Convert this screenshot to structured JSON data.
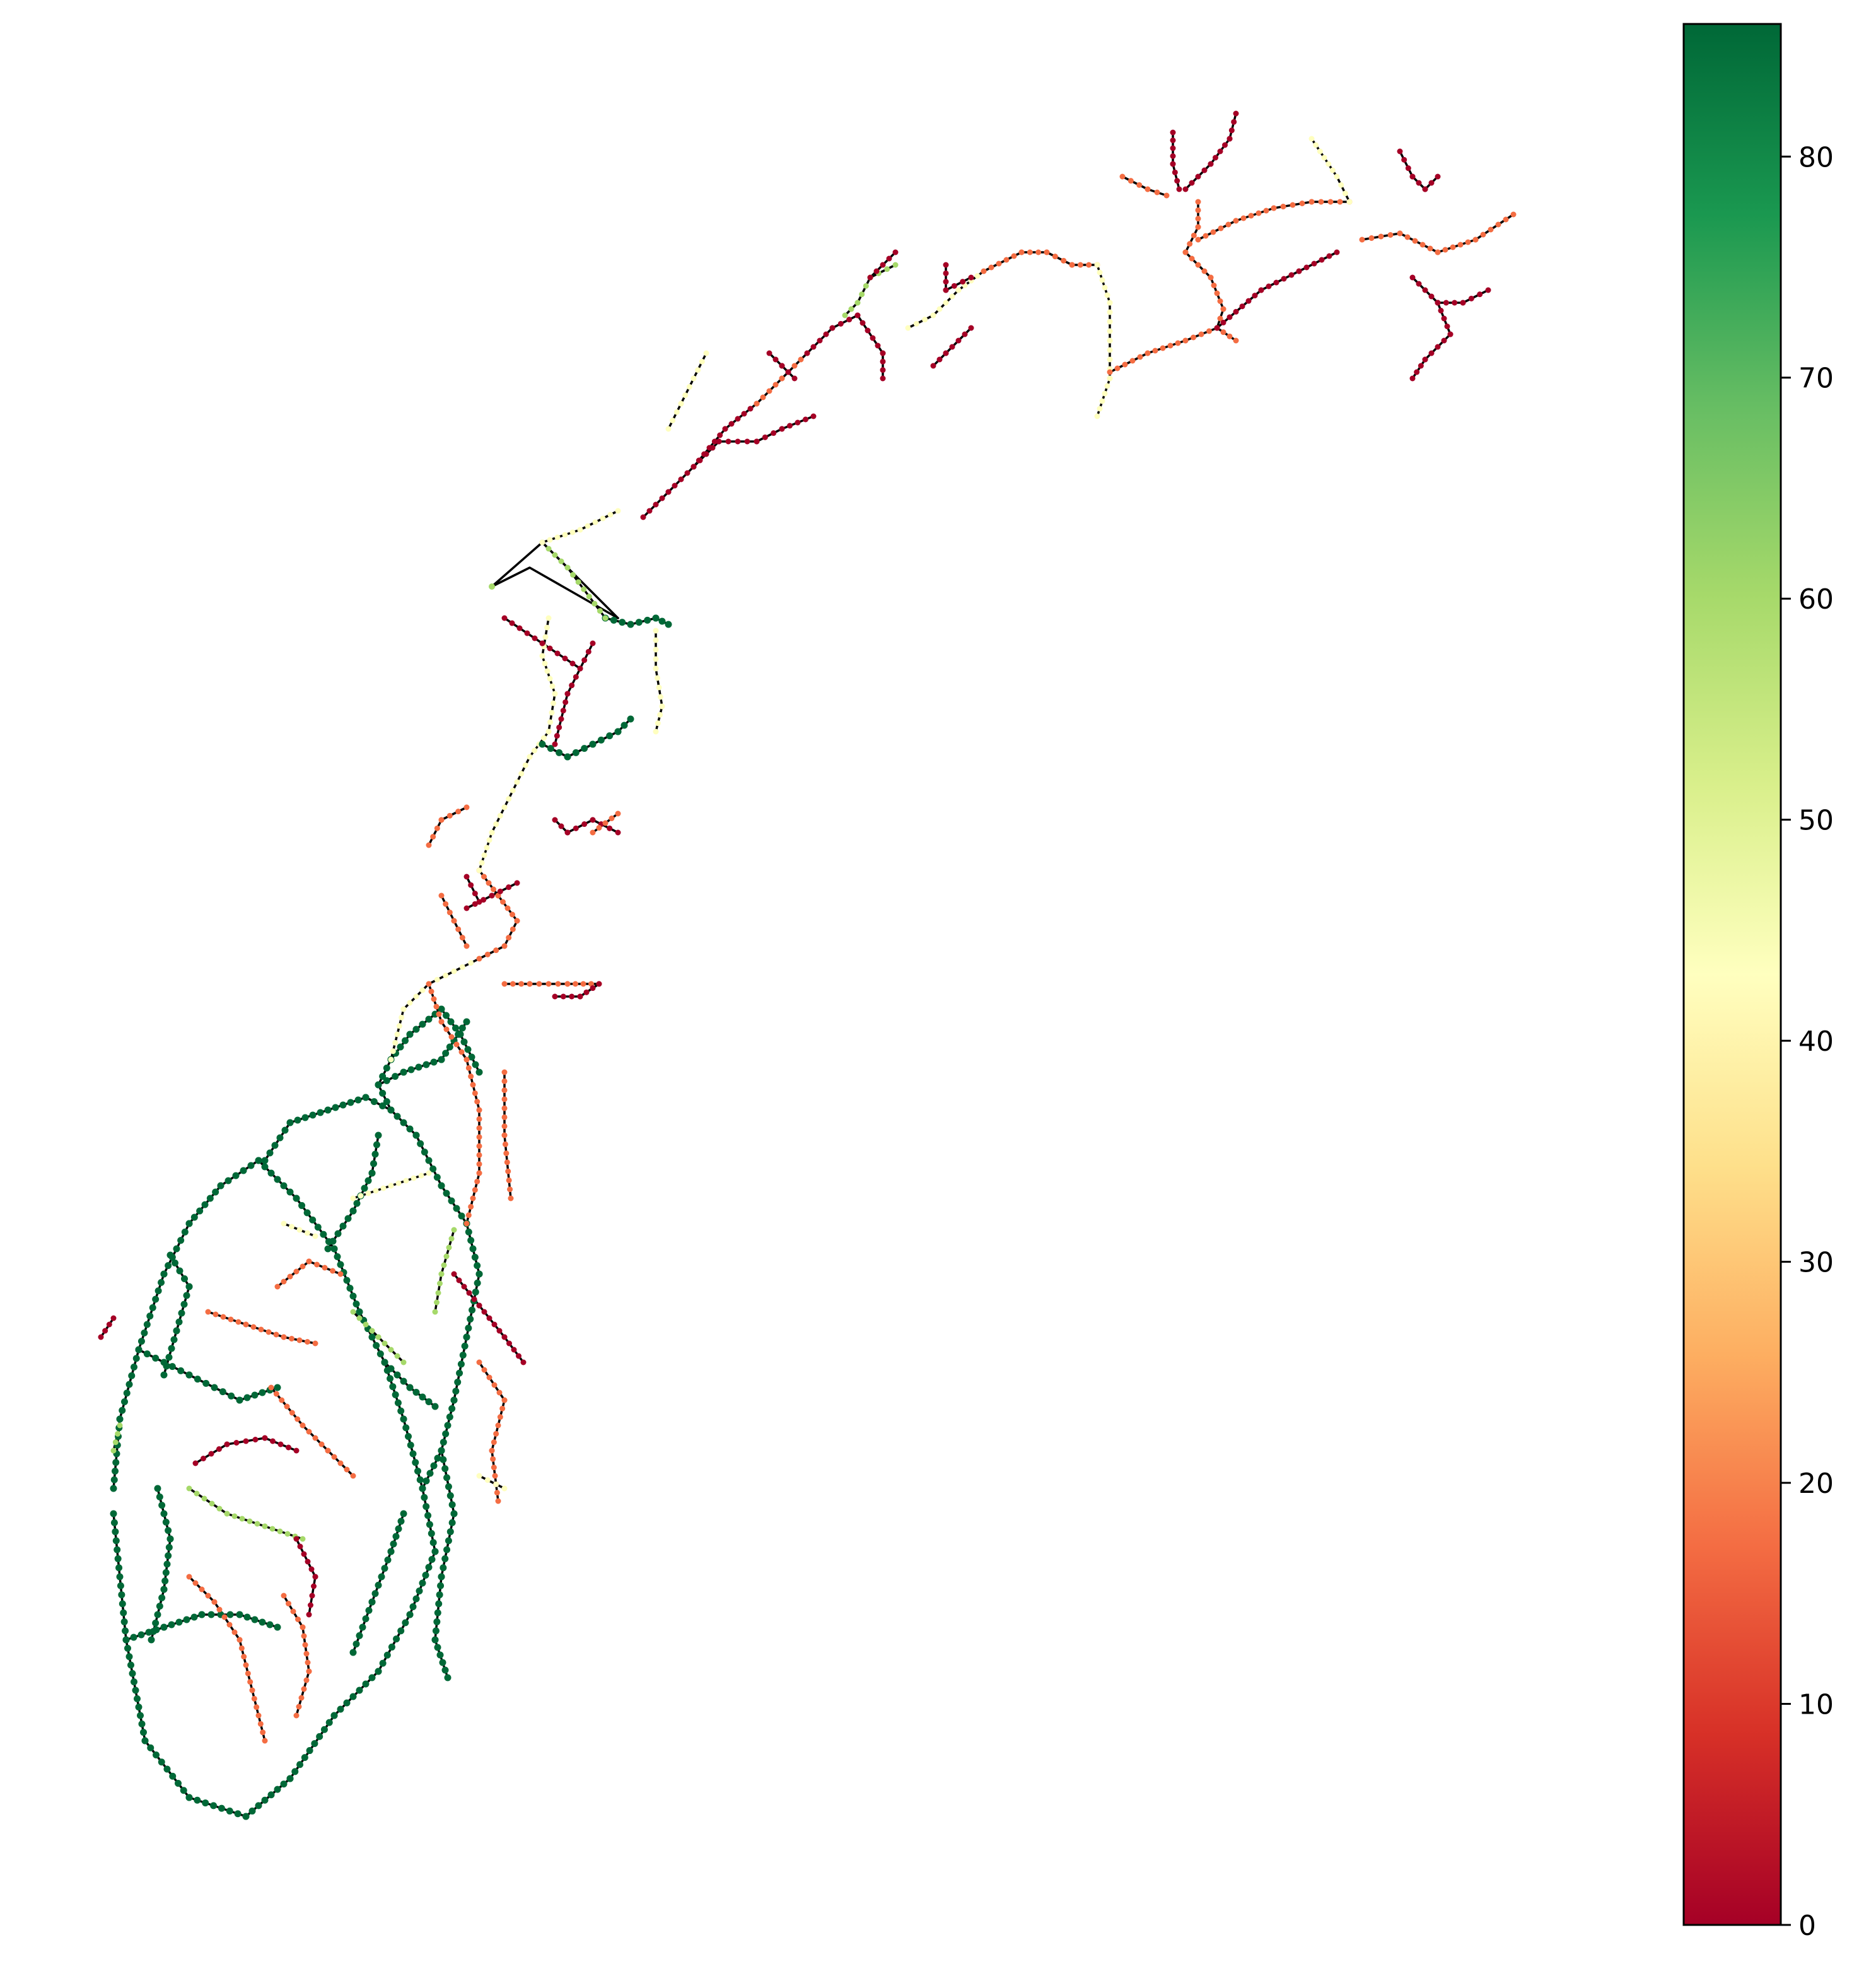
{
  "colorbar": {
    "min": 0,
    "max": 86,
    "colormap": "RdYlGn",
    "stops": [
      "#a50026",
      "#d73027",
      "#f46d43",
      "#fdae61",
      "#fee08b",
      "#ffffbf",
      "#d9ef8b",
      "#a6d96a",
      "#66bd63",
      "#1a9850",
      "#006837"
    ],
    "ticks": [
      {
        "value": 0,
        "label": "0"
      },
      {
        "value": 10,
        "label": "10"
      },
      {
        "value": 20,
        "label": "20"
      },
      {
        "value": 30,
        "label": "30"
      },
      {
        "value": 40,
        "label": "40"
      },
      {
        "value": 50,
        "label": "50"
      },
      {
        "value": 60,
        "label": "60"
      },
      {
        "value": 70,
        "label": "70"
      },
      {
        "value": 80,
        "label": "80"
      }
    ]
  },
  "map": {
    "description_free": true,
    "edge_color": "#000000",
    "node_colors": {
      "low": "#a50026",
      "orange": "#f46d43",
      "yellow": "#ffffbf",
      "light_green": "#a6d96a",
      "dark_green": "#006837"
    }
  }
}
